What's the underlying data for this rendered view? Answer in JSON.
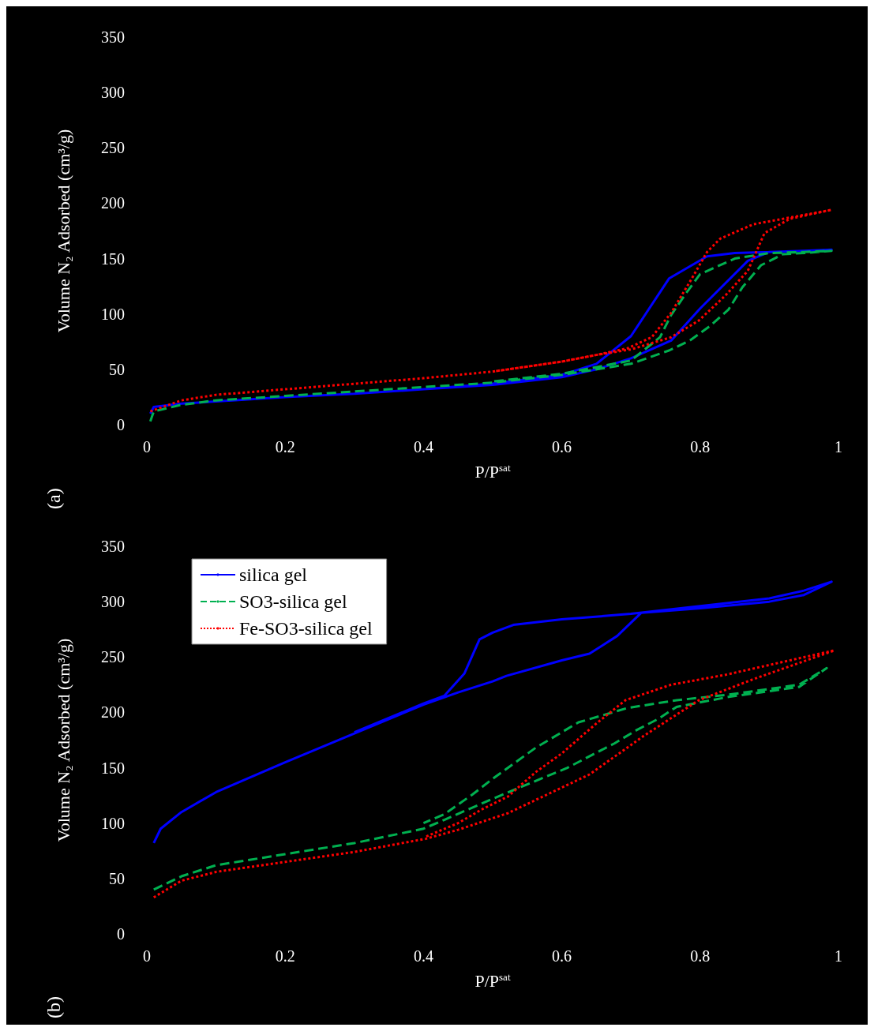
{
  "chart_data": [
    {
      "type": "line",
      "xlabel": "P/P$^{sat}$",
      "ylabel": "Volume N₂ Adsorbed (cm³/g)",
      "xlim": [
        0,
        1
      ],
      "ylim": [
        0,
        350
      ],
      "xticks": [
        0,
        0.2,
        0.4,
        0.6,
        0.8,
        1
      ],
      "yticks": [
        0,
        50,
        100,
        150,
        200,
        250,
        300,
        350
      ],
      "grid": false,
      "legend": false,
      "annotations": [
        "(a)"
      ],
      "series": [
        {
          "color": "#0000ff",
          "line_style": "solid",
          "x": [
            0.005,
            0.01,
            0.05,
            0.1,
            0.2,
            0.3,
            0.4,
            0.5,
            0.6,
            0.65,
            0.7,
            0.758,
            0.8,
            0.869,
            0.9,
            0.95,
            0.99,
            0.95,
            0.9,
            0.85,
            0.81,
            0.755,
            0.7,
            0.65,
            0.6,
            0.5,
            0.4,
            0.3
          ],
          "values": [
            10,
            16,
            19,
            21,
            25,
            28,
            32,
            36,
            43,
            50,
            60,
            76,
            105,
            148,
            156,
            157,
            158,
            157,
            156,
            155,
            152,
            132,
            80,
            55,
            45,
            37,
            32,
            28
          ]
        },
        {
          "color": "#00b050",
          "line_style": "dashed",
          "x": [
            0.005,
            0.01,
            0.05,
            0.1,
            0.2,
            0.3,
            0.4,
            0.5,
            0.6,
            0.7,
            0.755,
            0.785,
            0.814,
            0.841,
            0.861,
            0.888,
            0.92,
            0.95,
            0.99,
            0.95,
            0.9,
            0.85,
            0.8,
            0.78,
            0.758,
            0.742,
            0.7,
            0.6,
            0.5
          ],
          "values": [
            3,
            12,
            18,
            22,
            26,
            30,
            34,
            38,
            45,
            55,
            67,
            76,
            89,
            104,
            124,
            144,
            154,
            155,
            157,
            156,
            155,
            150,
            136,
            119,
            99,
            79,
            58,
            46,
            39
          ]
        },
        {
          "color": "#ff0000",
          "line_style": "dotted",
          "x": [
            0.005,
            0.05,
            0.1,
            0.2,
            0.3,
            0.4,
            0.5,
            0.6,
            0.65,
            0.7,
            0.758,
            0.798,
            0.837,
            0.869,
            0.893,
            0.93,
            0.99,
            0.877,
            0.829,
            0.81,
            0.787,
            0.758,
            0.73,
            0.695,
            0.65,
            0.6,
            0.5
          ],
          "values": [
            12,
            22,
            27,
            32,
            37,
            42,
            48,
            57,
            63,
            68,
            79,
            94,
            117,
            139,
            173,
            186,
            194,
            181,
            168,
            156,
            131,
            101,
            79,
            69,
            63,
            57,
            48
          ]
        }
      ]
    },
    {
      "type": "line",
      "xlabel": "P/P$^{sat}$",
      "ylabel": "Volume N₂ Adsorbed (cm³/g)",
      "xlim": [
        0,
        1
      ],
      "ylim": [
        0,
        350
      ],
      "xticks": [
        0,
        0.2,
        0.4,
        0.6,
        0.8,
        1
      ],
      "yticks": [
        0,
        50,
        100,
        150,
        200,
        250,
        300,
        350
      ],
      "grid": false,
      "legend": "top left",
      "annotations": [
        "(b)"
      ],
      "series": [
        {
          "name": "silica gel",
          "color": "#0000ff",
          "line_style": "solid",
          "x": [
            0.01,
            0.02,
            0.05,
            0.1,
            0.2,
            0.3,
            0.4,
            0.45,
            0.5,
            0.52,
            0.6,
            0.64,
            0.68,
            0.715,
            0.8,
            0.9,
            0.95,
            0.99,
            0.95,
            0.9,
            0.8,
            0.7,
            0.6,
            0.53,
            0.5,
            0.481,
            0.459,
            0.43,
            0.4,
            0.3
          ],
          "values": [
            82,
            95,
            110,
            128,
            155,
            181,
            207,
            218,
            228,
            233,
            247,
            253,
            269,
            290,
            294,
            300,
            306,
            318,
            310,
            303,
            296,
            289,
            284,
            279,
            272,
            266,
            235,
            215,
            208,
            182
          ]
        },
        {
          "name": "SO3-silica gel",
          "color": "#00b050",
          "line_style": "dashed",
          "x": [
            0.01,
            0.05,
            0.1,
            0.2,
            0.3,
            0.4,
            0.43,
            0.5,
            0.55,
            0.608,
            0.676,
            0.708,
            0.739,
            0.766,
            0.841,
            0.943,
            0.983,
            0.943,
            0.841,
            0.766,
            0.695,
            0.624,
            0.562,
            0.502,
            0.471,
            0.43,
            0.4
          ],
          "values": [
            40,
            52,
            62,
            72,
            82,
            95,
            103,
            122,
            135,
            150,
            172,
            184,
            194,
            205,
            214,
            223,
            240,
            225,
            216,
            211,
            204,
            191,
            168,
            141,
            126,
            108,
            100
          ]
        },
        {
          "name": "Fe-SO3-silica gel",
          "color": "#ff0000",
          "line_style": "dotted",
          "x": [
            0.01,
            0.05,
            0.1,
            0.2,
            0.3,
            0.404,
            0.45,
            0.522,
            0.64,
            0.719,
            0.798,
            0.877,
            0.994,
            0.837,
            0.758,
            0.692,
            0.648,
            0.6,
            0.562,
            0.522,
            0.483,
            0.45,
            0.404
          ],
          "values": [
            33,
            48,
            56,
            65,
            74,
            86,
            94,
            109,
            144,
            179,
            211,
            230,
            256,
            234,
            225,
            211,
            189,
            163,
            146,
            124,
            112,
            100,
            88
          ]
        }
      ]
    }
  ]
}
